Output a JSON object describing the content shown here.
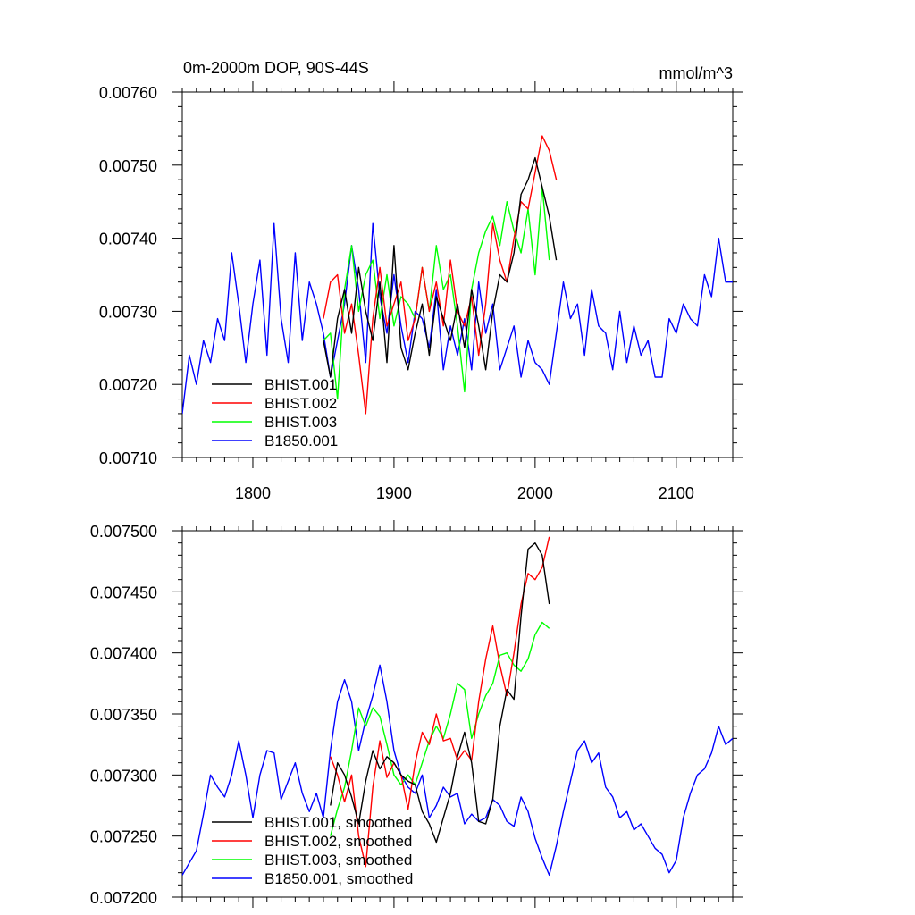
{
  "chart_data": [
    {
      "type": "line",
      "title": "0m-2000m DOP, 90S-44S",
      "units": "mmol/m^3",
      "xlim": [
        1750,
        2140
      ],
      "ylim": [
        0.0071,
        0.0076
      ],
      "xticks": [
        1800,
        1900,
        2000,
        2100
      ],
      "xtick_labels": [
        "1800",
        "1900",
        "2000",
        "2100"
      ],
      "yticks": [
        0.0071,
        0.0072,
        0.0073,
        0.0074,
        0.0075,
        0.0076
      ],
      "ytick_labels": [
        "0.00710",
        "0.00720",
        "0.00730",
        "0.00740",
        "0.00750",
        "0.00760"
      ],
      "legend_position": "bottom-left",
      "series": [
        {
          "name": "BHIST.001",
          "color": "#000000",
          "x": [
            1850,
            1855,
            1860,
            1865,
            1870,
            1875,
            1880,
            1885,
            1890,
            1895,
            1900,
            1905,
            1910,
            1915,
            1920,
            1925,
            1930,
            1935,
            1940,
            1945,
            1950,
            1955,
            1960,
            1965,
            1970,
            1975,
            1980,
            1985,
            1990,
            1995,
            2000,
            2005,
            2010,
            2015
          ],
          "values": [
            0.00726,
            0.00721,
            0.00729,
            0.00733,
            0.00727,
            0.00736,
            0.0073,
            0.00726,
            0.00734,
            0.00723,
            0.00739,
            0.00725,
            0.00722,
            0.00727,
            0.00731,
            0.00724,
            0.00732,
            0.00729,
            0.00726,
            0.00731,
            0.00725,
            0.00733,
            0.00728,
            0.00722,
            0.0073,
            0.00735,
            0.00734,
            0.00738,
            0.00746,
            0.00748,
            0.00751,
            0.00747,
            0.00743,
            0.00737
          ]
        },
        {
          "name": "BHIST.002",
          "color": "#ff0000",
          "x": [
            1850,
            1855,
            1860,
            1865,
            1870,
            1875,
            1880,
            1885,
            1890,
            1895,
            1900,
            1905,
            1910,
            1915,
            1920,
            1925,
            1930,
            1935,
            1940,
            1945,
            1950,
            1955,
            1960,
            1965,
            1970,
            1975,
            1980,
            1985,
            1990,
            1995,
            2000,
            2005,
            2010,
            2015
          ],
          "values": [
            0.00729,
            0.00734,
            0.00735,
            0.00727,
            0.00731,
            0.00724,
            0.00716,
            0.00729,
            0.00736,
            0.00728,
            0.00731,
            0.00734,
            0.00726,
            0.00729,
            0.00736,
            0.0073,
            0.00734,
            0.00728,
            0.00737,
            0.0073,
            0.00728,
            0.00732,
            0.00724,
            0.00731,
            0.00742,
            0.00737,
            0.00734,
            0.0074,
            0.00745,
            0.00744,
            0.00749,
            0.00754,
            0.00752,
            0.00748
          ]
        },
        {
          "name": "BHIST.003",
          "color": "#00ff00",
          "x": [
            1850,
            1855,
            1860,
            1865,
            1870,
            1875,
            1880,
            1885,
            1890,
            1895,
            1900,
            1905,
            1910,
            1915,
            1920,
            1925,
            1930,
            1935,
            1940,
            1945,
            1950,
            1955,
            1960,
            1965,
            1970,
            1975,
            1980,
            1985,
            1990,
            1995,
            2000,
            2005,
            2010
          ],
          "values": [
            0.00726,
            0.00727,
            0.00718,
            0.00733,
            0.00739,
            0.0073,
            0.00735,
            0.00737,
            0.00729,
            0.00735,
            0.00728,
            0.00732,
            0.00731,
            0.00729,
            0.00736,
            0.0073,
            0.00739,
            0.00733,
            0.00735,
            0.00728,
            0.00719,
            0.00733,
            0.00738,
            0.00741,
            0.00743,
            0.00739,
            0.00745,
            0.00741,
            0.00738,
            0.00744,
            0.00735,
            0.00747,
            0.00737
          ]
        },
        {
          "name": "B1850.001",
          "color": "#0000ff",
          "x": [
            1750,
            1755,
            1760,
            1765,
            1770,
            1775,
            1780,
            1785,
            1790,
            1795,
            1800,
            1805,
            1810,
            1815,
            1820,
            1825,
            1830,
            1835,
            1840,
            1845,
            1850,
            1855,
            1860,
            1865,
            1870,
            1875,
            1880,
            1885,
            1890,
            1895,
            1900,
            1905,
            1910,
            1915,
            1920,
            1925,
            1930,
            1935,
            1940,
            1945,
            1950,
            1955,
            1960,
            1965,
            1970,
            1975,
            1980,
            1985,
            1990,
            1995,
            2000,
            2005,
            2010,
            2015,
            2020,
            2025,
            2030,
            2035,
            2040,
            2045,
            2050,
            2055,
            2060,
            2065,
            2070,
            2075,
            2080,
            2085,
            2090,
            2095,
            2100,
            2105,
            2110,
            2115,
            2120,
            2125,
            2130,
            2135,
            2140
          ],
          "values": [
            0.00716,
            0.00724,
            0.0072,
            0.00726,
            0.00723,
            0.00729,
            0.00726,
            0.00738,
            0.00731,
            0.00723,
            0.00731,
            0.00737,
            0.00724,
            0.00742,
            0.00729,
            0.00723,
            0.00738,
            0.00726,
            0.00734,
            0.00731,
            0.00727,
            0.00721,
            0.00726,
            0.00731,
            0.00739,
            0.00733,
            0.00723,
            0.00742,
            0.00732,
            0.00727,
            0.00735,
            0.00728,
            0.00723,
            0.0073,
            0.00729,
            0.00725,
            0.00733,
            0.00722,
            0.00728,
            0.00724,
            0.00729,
            0.00722,
            0.00734,
            0.00727,
            0.00731,
            0.00722,
            0.00725,
            0.00728,
            0.00721,
            0.00726,
            0.00723,
            0.00722,
            0.0072,
            0.00727,
            0.00734,
            0.00729,
            0.00731,
            0.00724,
            0.00733,
            0.00728,
            0.00727,
            0.00722,
            0.0073,
            0.00723,
            0.00728,
            0.00724,
            0.00726,
            0.00721,
            0.00721,
            0.00729,
            0.00727,
            0.00731,
            0.00729,
            0.00728,
            0.00735,
            0.00732,
            0.0074,
            0.00734,
            0.00734
          ]
        }
      ]
    },
    {
      "type": "line",
      "title": "",
      "xlim": [
        1750,
        2140
      ],
      "ylim": [
        0.0072,
        0.0075
      ],
      "xticks": [
        1800,
        1900,
        2000,
        2100
      ],
      "yticks": [
        0.0072,
        0.00725,
        0.0073,
        0.00735,
        0.0074,
        0.00745,
        0.0075
      ],
      "ytick_labels": [
        "0.007200",
        "0.007250",
        "0.007300",
        "0.007350",
        "0.007400",
        "0.007450",
        "0.007500"
      ],
      "legend_position": "bottom-left",
      "series": [
        {
          "name": "BHIST.001, smoothed",
          "color": "#000000",
          "x": [
            1855,
            1860,
            1865,
            1870,
            1875,
            1880,
            1885,
            1890,
            1895,
            1900,
            1905,
            1910,
            1915,
            1920,
            1925,
            1930,
            1935,
            1940,
            1945,
            1950,
            1955,
            1960,
            1965,
            1970,
            1975,
            1980,
            1985,
            1990,
            1995,
            2000,
            2005,
            2010
          ],
          "values": [
            0.007275,
            0.00731,
            0.0073,
            0.007282,
            0.00726,
            0.007295,
            0.00732,
            0.007305,
            0.007315,
            0.00731,
            0.0073,
            0.007295,
            0.007292,
            0.00727,
            0.00726,
            0.007245,
            0.007265,
            0.007285,
            0.007315,
            0.007335,
            0.00731,
            0.007262,
            0.00726,
            0.00728,
            0.00734,
            0.00737,
            0.007362,
            0.00743,
            0.007485,
            0.00749,
            0.00748,
            0.00744
          ]
        },
        {
          "name": "BHIST.002, smoothed",
          "color": "#ff0000",
          "x": [
            1855,
            1860,
            1865,
            1870,
            1875,
            1880,
            1885,
            1890,
            1895,
            1900,
            1905,
            1910,
            1915,
            1920,
            1925,
            1930,
            1935,
            1940,
            1945,
            1950,
            1955,
            1960,
            1965,
            1970,
            1975,
            1980,
            1985,
            1990,
            1995,
            2000,
            2005,
            2010
          ],
          "values": [
            0.007315,
            0.0073,
            0.007278,
            0.0073,
            0.00725,
            0.007225,
            0.00729,
            0.007328,
            0.007298,
            0.00731,
            0.0073,
            0.007272,
            0.00731,
            0.007335,
            0.007325,
            0.00735,
            0.007328,
            0.00733,
            0.007312,
            0.00732,
            0.007312,
            0.00736,
            0.007395,
            0.007422,
            0.00739,
            0.007365,
            0.0074,
            0.00744,
            0.007465,
            0.00746,
            0.00747,
            0.007495
          ]
        },
        {
          "name": "BHIST.003, smoothed",
          "color": "#00ff00",
          "x": [
            1855,
            1860,
            1865,
            1870,
            1875,
            1880,
            1885,
            1890,
            1895,
            1900,
            1905,
            1910,
            1915,
            1920,
            1925,
            1930,
            1935,
            1940,
            1945,
            1950,
            1955,
            1960,
            1965,
            1970,
            1975,
            1980,
            1985,
            1990,
            1995,
            2000,
            2005,
            2010
          ],
          "values": [
            0.00725,
            0.007272,
            0.00729,
            0.00732,
            0.007355,
            0.00734,
            0.007355,
            0.007348,
            0.007325,
            0.0073,
            0.007292,
            0.0073,
            0.007292,
            0.00731,
            0.007328,
            0.00734,
            0.00733,
            0.00735,
            0.007375,
            0.00737,
            0.00733,
            0.00735,
            0.007365,
            0.007375,
            0.007398,
            0.0074,
            0.00739,
            0.007385,
            0.007395,
            0.007415,
            0.007425,
            0.00742
          ]
        },
        {
          "name": "B1850.001, smoothed",
          "color": "#0000ff",
          "x": [
            1750,
            1755,
            1760,
            1765,
            1770,
            1775,
            1780,
            1785,
            1790,
            1795,
            1800,
            1805,
            1810,
            1815,
            1820,
            1825,
            1830,
            1835,
            1840,
            1845,
            1850,
            1855,
            1860,
            1865,
            1870,
            1875,
            1880,
            1885,
            1890,
            1895,
            1900,
            1905,
            1910,
            1915,
            1920,
            1925,
            1930,
            1935,
            1940,
            1945,
            1950,
            1955,
            1960,
            1965,
            1970,
            1975,
            1980,
            1985,
            1990,
            1995,
            2000,
            2005,
            2010,
            2015,
            2020,
            2025,
            2030,
            2035,
            2040,
            2045,
            2050,
            2055,
            2060,
            2065,
            2070,
            2075,
            2080,
            2085,
            2090,
            2095,
            2100,
            2105,
            2110,
            2115,
            2120,
            2125,
            2130,
            2135,
            2140
          ],
          "values": [
            0.007218,
            0.007228,
            0.007238,
            0.007268,
            0.0073,
            0.00729,
            0.007282,
            0.0073,
            0.007328,
            0.0073,
            0.007265,
            0.0073,
            0.00732,
            0.007318,
            0.00728,
            0.007295,
            0.00731,
            0.007285,
            0.00727,
            0.007285,
            0.007265,
            0.00732,
            0.00736,
            0.007378,
            0.00736,
            0.00732,
            0.007345,
            0.007365,
            0.00739,
            0.00736,
            0.00732,
            0.0073,
            0.00729,
            0.007285,
            0.0073,
            0.007265,
            0.007275,
            0.00729,
            0.007282,
            0.007285,
            0.00726,
            0.007268,
            0.007262,
            0.007265,
            0.00728,
            0.007275,
            0.007262,
            0.007258,
            0.007282,
            0.00727,
            0.007248,
            0.007232,
            0.007218,
            0.007242,
            0.00727,
            0.007295,
            0.00732,
            0.007328,
            0.00731,
            0.007318,
            0.00729,
            0.007282,
            0.007265,
            0.00727,
            0.007255,
            0.00726,
            0.00725,
            0.00724,
            0.007235,
            0.00722,
            0.00723,
            0.007265,
            0.007285,
            0.0073,
            0.007305,
            0.007318,
            0.00734,
            0.007325,
            0.00733
          ]
        }
      ]
    }
  ]
}
